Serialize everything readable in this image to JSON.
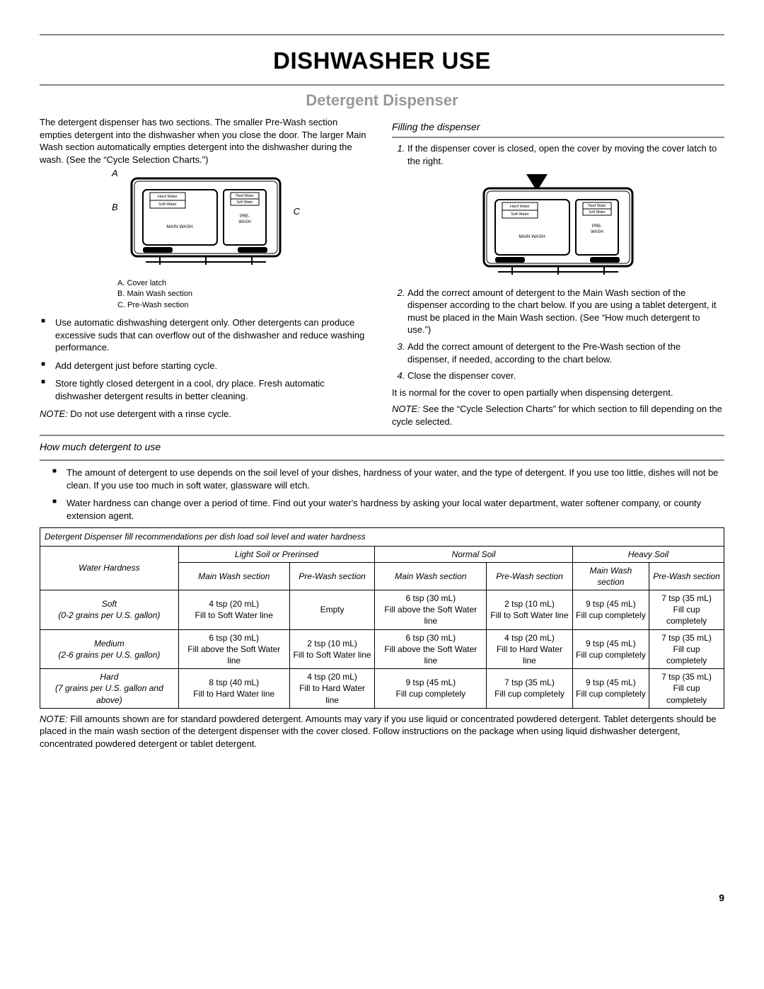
{
  "page": {
    "title": "DISHWASHER USE",
    "section": "Detergent Dispenser",
    "pageNum": "9"
  },
  "intro": "The detergent dispenser has two sections. The smaller Pre-Wash section empties detergent into the dishwasher when you close the door. The larger Main Wash section automatically empties detergent into the dishwasher during the wash. (See the “Cycle Selection Charts.”)",
  "legend": {
    "a": "A. Cover latch",
    "b": "B. Main Wash section",
    "c": "C. Pre-Wash section",
    "lblA": "A",
    "lblB": "B",
    "lblC": "C"
  },
  "bullets": [
    "Use automatic dishwashing detergent only. Other detergents can produce excessive suds that can overflow out of the dishwasher and reduce washing performance.",
    "Add detergent just before starting cycle.",
    "Store tightly closed detergent in a cool, dry place. Fresh automatic dishwasher detergent results in better cleaning."
  ],
  "note1": {
    "lbl": "NOTE:",
    "txt": " Do not use detergent with a rinse cycle."
  },
  "filling": {
    "heading": "Filling the dispenser",
    "steps": [
      "If the dispenser cover is closed, open the cover by moving the cover latch to the right.",
      "Add the correct amount of detergent to the Main Wash section of the dispenser according to the chart below. If you are using a tablet detergent, it must be placed in the Main Wash section. (See “How much detergent to use.”)",
      "Add the correct amount of detergent to the Pre-Wash section of the dispenser, if needed, according to the chart below.",
      "Close the dispenser cover."
    ],
    "after": "It is normal for the cover to open partially when dispensing detergent.",
    "note": {
      "lbl": "NOTE:",
      "txt": " See the “Cycle Selection Charts” for which section to fill depending on the cycle selected."
    }
  },
  "howmuch": {
    "heading": "How much detergent to use",
    "bullets": [
      "The amount of detergent to use depends on the soil level of your dishes, hardness of your water, and the type of detergent. If you use too little, dishes will not be clean. If you use too much in soft water, glassware will etch.",
      "Water hardness can change over a period of time. Find out your water's hardness by asking your local water department, water softener company, or county extension agent."
    ]
  },
  "table": {
    "caption": "Detergent Dispenser fill recommendations per dish load soil level and water hardness",
    "h_waterhardness": "Water Hardness",
    "h_light": "Light Soil or Prerinsed",
    "h_normal": "Normal Soil",
    "h_heavy": "Heavy Soil",
    "h_main": "Main Wash section",
    "h_pre": "Pre-Wash section",
    "rows": [
      {
        "label": "Soft\n(0-2 grains per U.S. gallon)",
        "cells": [
          "4 tsp (20 mL)\nFill to Soft Water line",
          "Empty",
          "6 tsp (30 mL)\nFill above the Soft Water line",
          "2 tsp (10 mL)\nFill to Soft Water line",
          "9 tsp (45 mL)\nFill cup completely",
          "7 tsp (35 mL)\nFill cup completely"
        ]
      },
      {
        "label": "Medium\n(2-6 grains per U.S. gallon)",
        "cells": [
          "6 tsp (30 mL)\nFill above the Soft Water line",
          "2 tsp (10 mL)\nFill to Soft Water line",
          "6 tsp (30 mL)\nFill above the Soft Water line",
          "4 tsp (20 mL)\nFill to Hard Water line",
          "9 tsp (45 mL)\nFill cup completely",
          "7 tsp (35 mL)\nFill cup completely"
        ]
      },
      {
        "label": "Hard\n(7 grains per U.S. gallon and above)",
        "cells": [
          "8 tsp (40 mL)\nFill to Hard Water line",
          "4 tsp (20 mL)\nFill to Hard Water line",
          "9 tsp (45 mL)\nFill cup completely",
          "7 tsp (35 mL)\nFill cup completely",
          "9 tsp (45 mL)\nFill cup completely",
          "7 tsp (35 mL)\nFill cup completely"
        ]
      }
    ]
  },
  "note2": {
    "lbl": "NOTE:",
    "txt": " Fill amounts shown are for standard powdered detergent. Amounts may vary if you use liquid or concentrated powdered detergent. Tablet detergents should be placed in the main wash section of the detergent dispenser with the cover closed. Follow instructions on the package when using liquid dishwasher detergent, concentrated powdered detergent or tablet detergent."
  },
  "diag": {
    "hardwater": "Hard Water",
    "softwater": "Soft Water",
    "mainwash": "MAIN WASH",
    "prewash": "PRE-WASH"
  }
}
